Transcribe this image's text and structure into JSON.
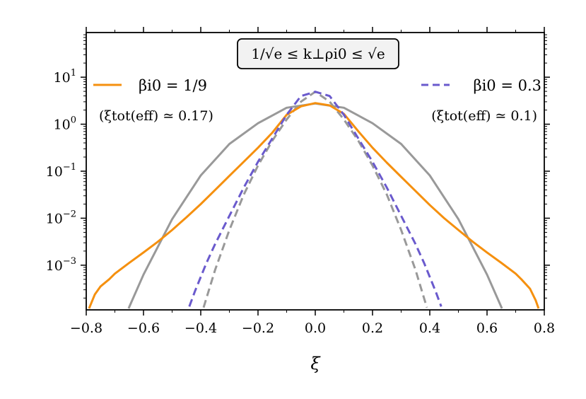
{
  "chart_data": {
    "type": "line",
    "title": "",
    "annotation_box": "1/√e ≤ k⊥ρi0 ≤ √e",
    "xlabel": "ξ",
    "ylabel": "",
    "xlim": [
      -0.8,
      0.8
    ],
    "ylim_log10": [
      -3.95,
      1.95
    ],
    "yscale": "log",
    "x_ticks": [
      -0.8,
      -0.6,
      -0.4,
      -0.2,
      0.0,
      0.2,
      0.4,
      0.6,
      0.8
    ],
    "x_tick_labels": [
      "−0.8",
      "−0.6",
      "−0.4",
      "−0.2",
      "0.0",
      "0.2",
      "0.4",
      "0.6",
      "0.8"
    ],
    "y_ticks_log10": [
      1,
      0,
      -1,
      -2,
      -3
    ],
    "y_tick_labels": [
      {
        "base": "10",
        "exp": "1"
      },
      {
        "base": "10",
        "exp": "0"
      },
      {
        "base": "10",
        "exp": "−1"
      },
      {
        "base": "10",
        "exp": "−2"
      },
      {
        "base": "10",
        "exp": "−3"
      }
    ],
    "legend": [
      {
        "label": "βi0 = 1/9",
        "sublabel": "(ξtot(eff) ≃ 0.17)",
        "color": "#f5900f",
        "dash": "solid",
        "placement": "top-left"
      },
      {
        "label": "βi0 = 0.3",
        "sublabel": "(ξtot(eff) ≃ 0.1)",
        "color": "#6a5acd",
        "dash": "dashed",
        "placement": "top-right"
      }
    ],
    "series": [
      {
        "name": "βi0 = 1/9",
        "color": "#f5900f",
        "dash": "solid",
        "x": [
          -0.79,
          -0.77,
          -0.75,
          -0.72,
          -0.7,
          -0.65,
          -0.6,
          -0.55,
          -0.5,
          -0.45,
          -0.4,
          -0.35,
          -0.3,
          -0.25,
          -0.2,
          -0.15,
          -0.1,
          -0.05,
          0.0,
          0.05,
          0.1,
          0.15,
          0.2,
          0.25,
          0.3,
          0.35,
          0.4,
          0.45,
          0.5,
          0.55,
          0.6,
          0.65,
          0.7,
          0.72,
          0.75,
          0.77,
          0.78
        ],
        "y_log10": [
          -3.92,
          -3.62,
          -3.45,
          -3.3,
          -3.18,
          -2.95,
          -2.73,
          -2.5,
          -2.25,
          -1.98,
          -1.7,
          -1.4,
          -1.1,
          -0.8,
          -0.5,
          -0.18,
          0.2,
          0.38,
          0.45,
          0.4,
          0.22,
          -0.15,
          -0.5,
          -0.82,
          -1.12,
          -1.42,
          -1.72,
          -2.0,
          -2.25,
          -2.5,
          -2.73,
          -2.95,
          -3.18,
          -3.3,
          -3.5,
          -3.75,
          -3.92
        ]
      },
      {
        "name": "βi0 = 0.3",
        "color": "#6a5acd",
        "dash": "dashed",
        "x": [
          -0.44,
          -0.42,
          -0.4,
          -0.38,
          -0.35,
          -0.3,
          -0.25,
          -0.2,
          -0.15,
          -0.1,
          -0.05,
          0.0,
          0.05,
          0.1,
          0.15,
          0.2,
          0.25,
          0.3,
          0.35,
          0.38,
          0.4,
          0.42,
          0.44
        ],
        "y_log10": [
          -3.88,
          -3.55,
          -3.25,
          -2.95,
          -2.55,
          -1.95,
          -1.35,
          -0.8,
          -0.3,
          0.2,
          0.6,
          0.69,
          0.6,
          0.2,
          -0.3,
          -0.8,
          -1.35,
          -1.95,
          -2.55,
          -2.95,
          -3.25,
          -3.55,
          -3.88
        ]
      },
      {
        "name": "",
        "color": "#999999",
        "dash": "solid",
        "x": [
          -0.652,
          -0.6,
          -0.5,
          -0.4,
          -0.3,
          -0.2,
          -0.1,
          0.0,
          0.1,
          0.2,
          0.3,
          0.4,
          0.5,
          0.6,
          0.652
        ],
        "y_log10": [
          -3.92,
          -3.2,
          -2.02,
          -1.09,
          -0.42,
          0.02,
          0.35,
          0.44,
          0.35,
          0.02,
          -0.42,
          -1.09,
          -2.02,
          -3.2,
          -3.92
        ]
      },
      {
        "name": "",
        "color": "#999999",
        "dash": "dashed",
        "x": [
          -0.39,
          -0.35,
          -0.3,
          -0.25,
          -0.2,
          -0.15,
          -0.1,
          -0.05,
          0.0,
          0.05,
          0.1,
          0.15,
          0.2,
          0.25,
          0.3,
          0.35,
          0.39
        ],
        "y_log10": [
          -3.9,
          -3.1,
          -2.25,
          -1.5,
          -0.88,
          -0.35,
          0.1,
          0.48,
          0.69,
          0.48,
          0.1,
          -0.35,
          -0.88,
          -1.5,
          -2.25,
          -3.1,
          -3.9
        ]
      }
    ]
  }
}
